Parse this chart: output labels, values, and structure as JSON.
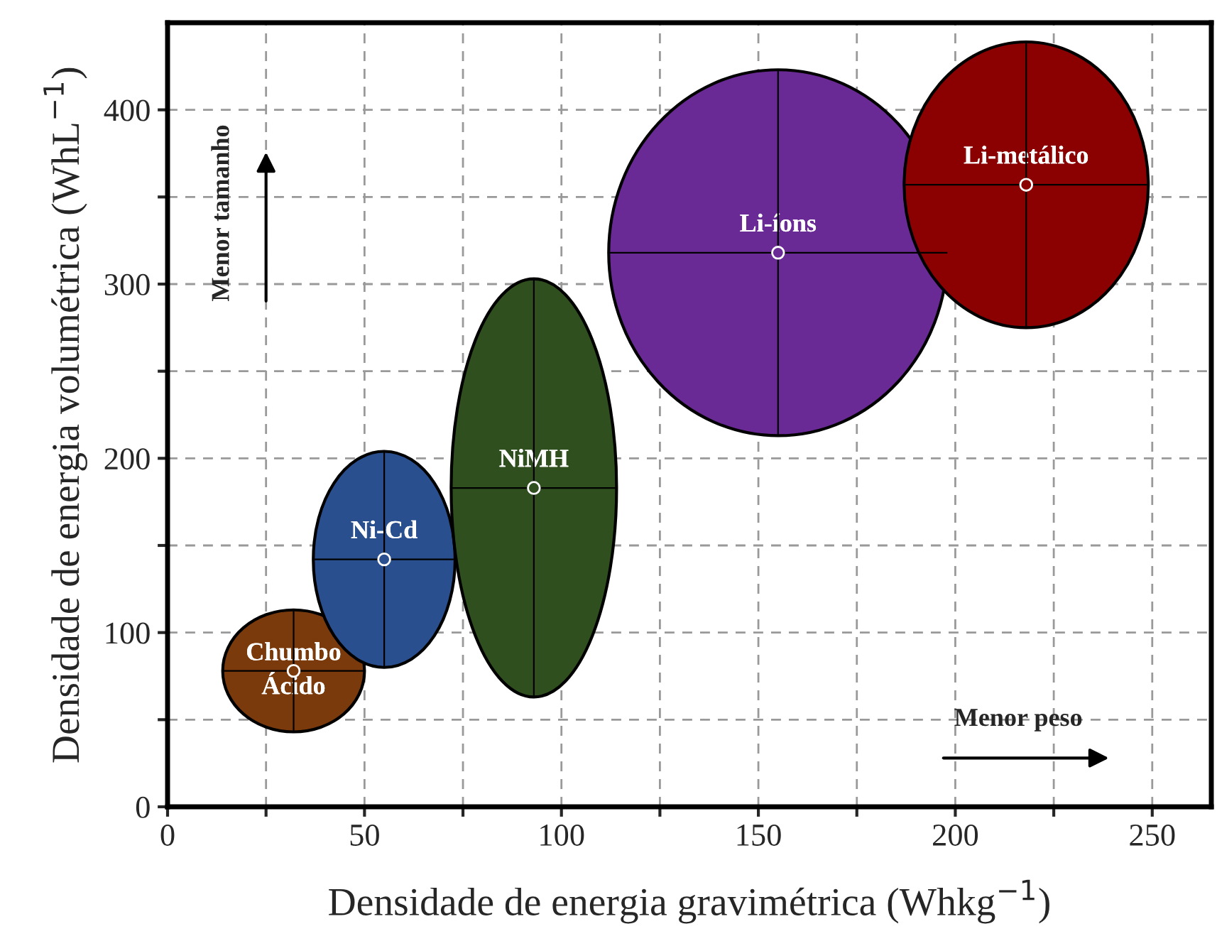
{
  "chart_data": {
    "type": "scatter",
    "xlabel": "Densidade de energia gravimétrica (Whkg$^{−1}$)",
    "ylabel": "Densidade de energia volumétrica (WhL$^{−1}$)",
    "xlim": [
      0,
      265
    ],
    "ylim": [
      0,
      450
    ],
    "xticks": [
      0,
      {
        "value": 25,
        "label": null
      },
      50,
      {
        "value": 75,
        "label": null
      },
      100,
      {
        "value": 125,
        "label": null
      },
      150,
      {
        "value": 175,
        "label": null
      },
      200,
      {
        "value": 225,
        "label": null
      },
      250
    ],
    "yticks": [
      0,
      {
        "value": 50,
        "label": null
      },
      100,
      {
        "value": 150,
        "label": null
      },
      200,
      {
        "value": 250,
        "label": null
      },
      300,
      {
        "value": 350,
        "label": null
      },
      400
    ],
    "grid": true,
    "series": [
      {
        "name": "Chumbo\nÁcido",
        "color": "#7a3a0c",
        "x": [
          32
        ],
        "values": [
          78
        ],
        "xerrors": [
          18
        ],
        "errors": [
          35
        ]
      },
      {
        "name": "Ni-Cd",
        "color": "#2a4f8f",
        "x": [
          55
        ],
        "values": [
          142
        ],
        "xerrors": [
          18
        ],
        "errors": [
          62
        ]
      },
      {
        "name": "NiMH",
        "color": "#2f4f1f",
        "x": [
          93
        ],
        "values": [
          183
        ],
        "xerrors": [
          21
        ],
        "errors": [
          120
        ]
      },
      {
        "name": "Li-íons",
        "color": "#6a2a96",
        "x": [
          155
        ],
        "values": [
          318
        ],
        "xerrors": [
          43
        ],
        "errors": [
          105
        ]
      },
      {
        "name": "Li-metálico",
        "color": "#8b0000",
        "x": [
          218
        ],
        "values": [
          357
        ],
        "xerrors": [
          31
        ],
        "errors": [
          82
        ]
      }
    ],
    "annotations": [
      "Menor tamanho",
      "Menor peso"
    ]
  }
}
